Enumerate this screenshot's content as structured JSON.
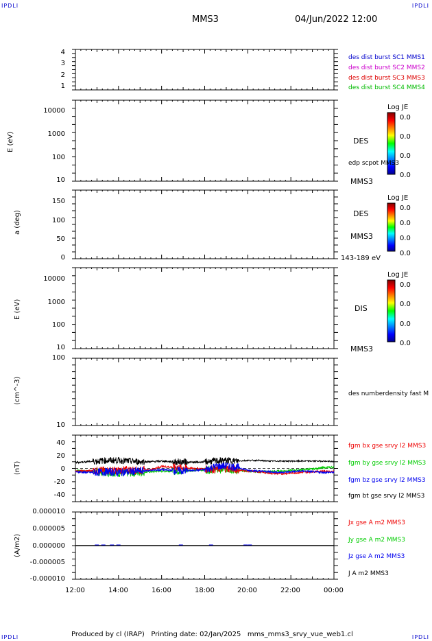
{
  "header": {
    "corner_tl": "IPDLI",
    "corner_tr": "IPDLI",
    "corner_bl": "IPDLI",
    "corner_br": "IPDLI",
    "spacecraft": "MMS3",
    "datetime": "04/Jun/2022 12:00"
  },
  "footer": {
    "text": "Produced by cl (IRAP)   Printing date: 02/Jan/2025   mms_mms3_srvy_vue_web1.cl"
  },
  "colors": {
    "mms1": "#0000cc",
    "mms2": "#cc00cc",
    "mms3": "#dd0000",
    "mms4": "#00bb00",
    "bx": "#ee0000",
    "by": "#00cc00",
    "bz": "#0000ee",
    "bt": "#000000"
  },
  "panels": {
    "burst": {
      "ylabel": "",
      "yticks": [
        "4",
        "3",
        "2",
        "1"
      ],
      "legend": [
        "des dist burst SC1 MMS1",
        "des dist burst SC2 MMS2",
        "des dist burst SC3 MMS3",
        "des dist burst SC4 MMS4"
      ]
    },
    "des_energy": {
      "ylabel": "E (eV)",
      "yticks": [
        "10000",
        "1000",
        "100",
        "10"
      ],
      "label_main": "DES",
      "label_sub": "edp scpot MMS3",
      "label_below": "MMS3",
      "colorbar_title": "Log JE",
      "colorbar_ticks": [
        "0.0",
        "0.0",
        "0.0",
        "0.0"
      ]
    },
    "des_pitch": {
      "ylabel": "a (deg)",
      "yticks": [
        "150",
        "100",
        "50",
        "0"
      ],
      "label_main": "DES",
      "label_sub": "MMS3",
      "label_below": "143-189 eV",
      "colorbar_title": "Log JE",
      "colorbar_ticks": [
        "0.0",
        "0.0",
        "0.0",
        "0.0"
      ]
    },
    "dis_energy": {
      "ylabel": "E (eV)",
      "yticks": [
        "10000",
        "1000",
        "100",
        "10"
      ],
      "label_main": "DIS",
      "label_below": "MMS3",
      "colorbar_title": "Log JE",
      "colorbar_ticks": [
        "0.0",
        "0.0",
        "0.0",
        "0.0"
      ]
    },
    "density": {
      "ylabel": "(cm^-3)",
      "yticks": [
        "100",
        "10"
      ],
      "legend": [
        "des numberdensity fast M"
      ]
    },
    "bfield": {
      "ylabel": "(nT)",
      "yticks": [
        "40",
        "20",
        "0",
        "-20",
        "-40"
      ],
      "legend": [
        "fgm bx gse srvy l2 MMS3",
        "fgm by gse srvy l2 MMS3",
        "fgm bz gse srvy l2 MMS3",
        "fgm bt gse srvy l2 MMS3"
      ]
    },
    "current": {
      "ylabel": "(A/m2)",
      "yticks": [
        "0.000010",
        "0.000005",
        "0.000000",
        "-0.000005",
        "-0.000010"
      ],
      "legend": [
        "Jx gse A m2 MMS3",
        "Jy gse A m2 MMS3",
        "Jz gse A m2 MMS3",
        "J A m2 MMS3"
      ]
    }
  },
  "x_axis": {
    "ticks": [
      "12:00",
      "14:00",
      "16:00",
      "18:00",
      "20:00",
      "22:00",
      "00:00"
    ]
  },
  "chart_data": [
    {
      "type": "line",
      "panel": "bfield",
      "x_unit": "hours from 12:00",
      "ylabel": "(nT)",
      "ylim": [
        -50,
        50
      ],
      "xlim": [
        0,
        12
      ],
      "series": [
        {
          "name": "fgm bx gse srvy l2 MMS3",
          "x": [
            0,
            0.5,
            1,
            1.5,
            2,
            2.5,
            3,
            3.5,
            4,
            4.5,
            5,
            5.5,
            6,
            6.5,
            7,
            7.5,
            8,
            8.5,
            9,
            9.5,
            10,
            10.5,
            11,
            11.5,
            12
          ],
          "y": [
            -4,
            -4,
            -3,
            -3,
            -3,
            -2,
            -3,
            -2,
            3,
            2,
            1,
            0,
            -1,
            -1,
            0,
            -2,
            -4,
            -5,
            -7,
            -8,
            -7,
            -6,
            -5,
            -4,
            -5
          ]
        },
        {
          "name": "fgm by gse srvy l2 MMS3",
          "x": [
            0,
            0.5,
            1,
            1.5,
            2,
            2.5,
            3,
            3.5,
            4,
            4.5,
            5,
            5.5,
            6,
            6.5,
            7,
            7.5,
            8,
            8.5,
            9,
            9.5,
            10,
            10.5,
            11,
            11.5,
            12
          ],
          "y": [
            -3,
            -4,
            -5,
            -6,
            -7,
            -7,
            -6,
            -5,
            -4,
            -4,
            -3,
            -3,
            -2,
            -2,
            -1,
            -3,
            -4,
            -5,
            -5,
            -4,
            -3,
            -2,
            -1,
            1,
            2
          ]
        },
        {
          "name": "fgm bz gse srvy l2 MMS3",
          "x": [
            0,
            0.5,
            1,
            1.5,
            2,
            2.5,
            3,
            3.5,
            4,
            4.5,
            5,
            5.5,
            6,
            6.5,
            7,
            7.5,
            8,
            8.5,
            9,
            9.5,
            10,
            10.5,
            11,
            11.5,
            12
          ],
          "y": [
            -5,
            -6,
            -6,
            -5,
            -6,
            -5,
            -4,
            -3,
            -2,
            -3,
            -4,
            -3,
            -2,
            3,
            4,
            2,
            -3,
            -4,
            -5,
            -6,
            -5,
            -4,
            -5,
            -6,
            -6
          ]
        },
        {
          "name": "fgm bt gse srvy l2 MMS3",
          "x": [
            0,
            0.5,
            1,
            1.5,
            2,
            2.5,
            3,
            3.5,
            4,
            4.5,
            5,
            5.5,
            6,
            6.5,
            7,
            7.5,
            8,
            8.5,
            9,
            9.5,
            10,
            10.5,
            11,
            11.5,
            12
          ],
          "y": [
            9,
            10,
            11,
            12,
            12,
            11,
            10,
            10,
            11,
            10,
            10,
            9,
            10,
            11,
            12,
            11,
            12,
            12,
            11,
            11,
            11,
            11,
            11,
            11,
            10
          ]
        }
      ]
    },
    {
      "type": "line",
      "panel": "current",
      "ylabel": "(A/m2)",
      "ylim": [
        -1e-05,
        1e-05
      ],
      "xlim": [
        0,
        12
      ],
      "series": [
        {
          "name": "J A m2 MMS3",
          "x": [
            0,
            12
          ],
          "y": [
            0,
            0
          ]
        }
      ]
    }
  ]
}
